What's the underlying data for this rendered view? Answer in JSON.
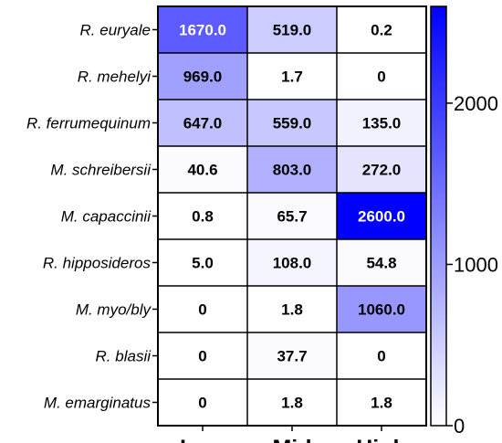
{
  "chart_data": {
    "type": "heatmap",
    "title": "",
    "xlabel": "",
    "ylabel": "",
    "columns": [
      "Low",
      "Mid",
      "High"
    ],
    "rows": [
      "R. euryale",
      "R. mehelyi",
      "R. ferrumequinum",
      "M. schreibersii",
      "M. capaccinii",
      "R. hipposideros",
      "M. myo/bly",
      "R. blasii",
      "M. emarginatus"
    ],
    "values": [
      [
        1670.0,
        519.0,
        0.2
      ],
      [
        969.0,
        1.7,
        0
      ],
      [
        647.0,
        559.0,
        135.0
      ],
      [
        40.6,
        803.0,
        272.0
      ],
      [
        0.8,
        65.7,
        2600.0
      ],
      [
        5.0,
        108.0,
        54.8
      ],
      [
        0,
        1.8,
        1060.0
      ],
      [
        0,
        37.7,
        0
      ],
      [
        0,
        1.8,
        1.8
      ]
    ],
    "value_labels": [
      [
        "1670.0",
        "519.0",
        "0.2"
      ],
      [
        "969.0",
        "1.7",
        "0"
      ],
      [
        "647.0",
        "559.0",
        "135.0"
      ],
      [
        "40.6",
        "803.0",
        "272.0"
      ],
      [
        "0.8",
        "65.7",
        "2600.0"
      ],
      [
        "5.0",
        "108.0",
        "54.8"
      ],
      [
        "0",
        "1.8",
        "1060.0"
      ],
      [
        "0",
        "37.7",
        "0"
      ],
      [
        "0",
        "1.8",
        "1.8"
      ]
    ],
    "colorbar": {
      "min": 0,
      "max": 2600,
      "ticks": [
        0,
        1000,
        2000
      ],
      "tick_labels": [
        "0",
        "1000",
        "2000"
      ],
      "low_color": "#ffffff",
      "high_color": "#0000ff"
    }
  }
}
